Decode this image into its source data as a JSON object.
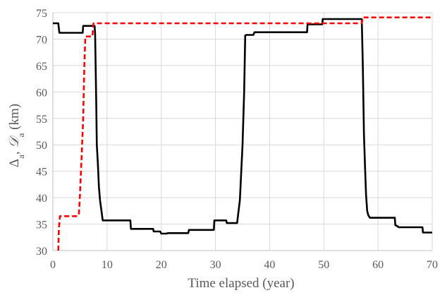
{
  "chart_data": {
    "type": "line",
    "title": "",
    "xlabel": "Time elapsed (year)",
    "ylabel": "Δa, 𝒟a (km)",
    "ylabel_parts": {
      "delta": "Δ",
      "sub_a1": "a",
      "sep": ", ",
      "script_d": "𝒟",
      "sub_a2": "a",
      "unit": " (km)"
    },
    "xlim": [
      0,
      70
    ],
    "ylim": [
      30,
      75
    ],
    "x_ticks": [
      0,
      10,
      20,
      30,
      40,
      50,
      60,
      70
    ],
    "y_ticks": [
      30,
      35,
      40,
      45,
      50,
      55,
      60,
      65,
      70,
      75
    ],
    "grid": true,
    "legend": "none",
    "series": [
      {
        "color": "#000000",
        "style": "solid",
        "x": [
          0,
          1,
          1.2,
          5.5,
          5.6,
          7.7,
          7.8,
          8.0,
          8.1,
          8.3,
          8.5,
          8.7,
          9.0,
          9.2,
          9.5,
          14.3,
          14.4,
          18.5,
          18.6,
          19.8,
          20.0,
          21.0,
          21.2,
          25.0,
          25.1,
          29.7,
          29.8,
          32.0,
          32.1,
          34.0,
          34.2,
          34.5,
          35.0,
          35.3,
          35.5,
          35.7,
          36.0,
          37.0,
          37.2,
          46.9,
          47.0,
          49.7,
          49.8,
          57.0,
          57.2,
          57.4,
          57.6,
          57.8,
          58.0,
          58.2,
          58.5,
          58.8,
          59.0,
          63.1,
          63.2,
          63.6,
          63.8,
          68.2,
          68.3,
          70
        ],
        "y": [
          73.0,
          73.0,
          71.2,
          71.2,
          72.5,
          72.5,
          71.0,
          58.0,
          50.0,
          46.5,
          42.0,
          39.5,
          37.2,
          35.7,
          35.7,
          35.7,
          34.1,
          34.1,
          33.6,
          33.6,
          33.2,
          33.2,
          33.3,
          33.3,
          33.9,
          33.9,
          35.7,
          35.7,
          35.2,
          35.2,
          37.0,
          39.5,
          50.0,
          60.0,
          70.7,
          70.8,
          70.8,
          70.8,
          71.3,
          71.3,
          72.8,
          72.8,
          73.8,
          73.8,
          65.0,
          52.0,
          46.0,
          40.5,
          37.5,
          36.7,
          36.2,
          36.2,
          36.2,
          36.2,
          34.8,
          34.6,
          34.4,
          34.4,
          33.4,
          33.4
        ]
      },
      {
        "color": "#ff0000",
        "style": "dashed",
        "x": [
          1,
          1.1,
          1.3,
          4.6,
          4.8,
          5.0,
          5.3,
          5.6,
          5.8,
          6.0,
          7.3,
          7.5,
          8.0,
          57.0,
          57.2,
          70
        ],
        "y": [
          30.0,
          34.0,
          36.5,
          36.5,
          37.0,
          40.5,
          47.5,
          55.0,
          65.0,
          70.5,
          70.5,
          73.0,
          73.0,
          73.0,
          74.1,
          74.1
        ]
      }
    ]
  }
}
